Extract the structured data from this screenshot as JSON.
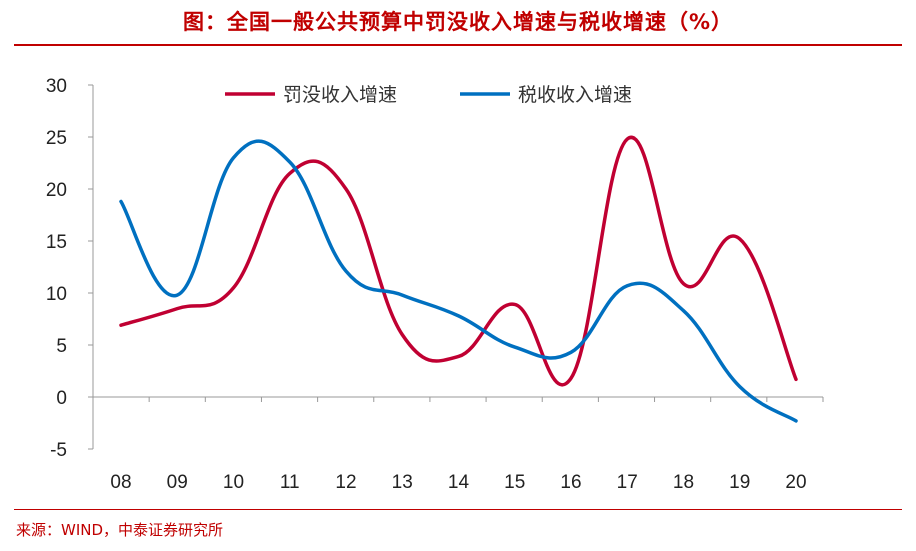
{
  "title": "图：全国一般公共预算中罚没收入增速与税收增速（%）",
  "source": "来源：WIND，中泰证券研究所",
  "chart_data": {
    "type": "line",
    "categories": [
      "08",
      "09",
      "10",
      "11",
      "12",
      "13",
      "14",
      "15",
      "16",
      "17",
      "18",
      "19",
      "20"
    ],
    "ylim": [
      -5,
      30
    ],
    "yticks": [
      "30",
      "25",
      "20",
      "15",
      "10",
      "5",
      "0",
      "-5"
    ],
    "ytick_values": [
      30,
      25,
      20,
      15,
      10,
      5,
      0,
      -5
    ],
    "legend_position": "top-center",
    "grid": false,
    "series": [
      {
        "name": "罚没收入增速",
        "color": "#c00032",
        "values": [
          6.9,
          8.5,
          10.5,
          21.5,
          20.0,
          6.0,
          3.9,
          8.9,
          1.8,
          24.8,
          10.9,
          15.2,
          1.7
        ]
      },
      {
        "name": "税收收入增速",
        "color": "#0070c0",
        "values": [
          18.8,
          9.8,
          23.0,
          22.6,
          12.1,
          9.8,
          7.8,
          4.8,
          4.3,
          10.7,
          8.3,
          1.0,
          -2.3
        ]
      }
    ]
  }
}
